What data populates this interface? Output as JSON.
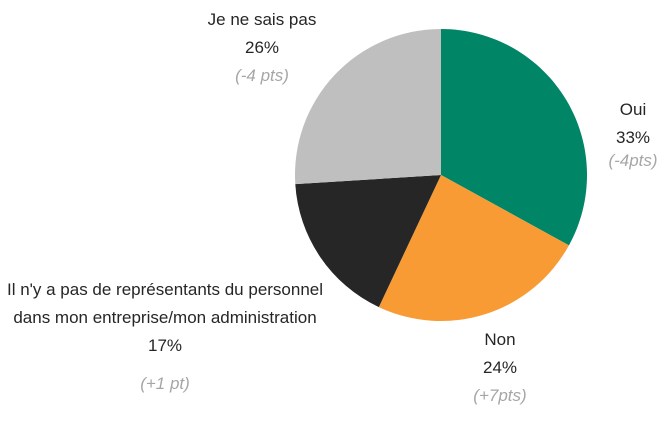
{
  "chart_data": {
    "type": "pie",
    "categories": [
      "Oui",
      "Non",
      "Il n'y a pas de représentants du personnel dans mon entreprise/mon administration",
      "Je ne sais pas"
    ],
    "values": [
      33,
      24,
      17,
      26
    ],
    "value_labels": [
      "33%",
      "24%",
      "17%",
      "26%"
    ],
    "annotations": [
      "(-4pts)",
      "(+7pts)",
      "(+1 pt)",
      "(-4 pts)"
    ],
    "colors": [
      "#008566",
      "#F99B34",
      "#262626",
      "#BFBFBF"
    ]
  }
}
